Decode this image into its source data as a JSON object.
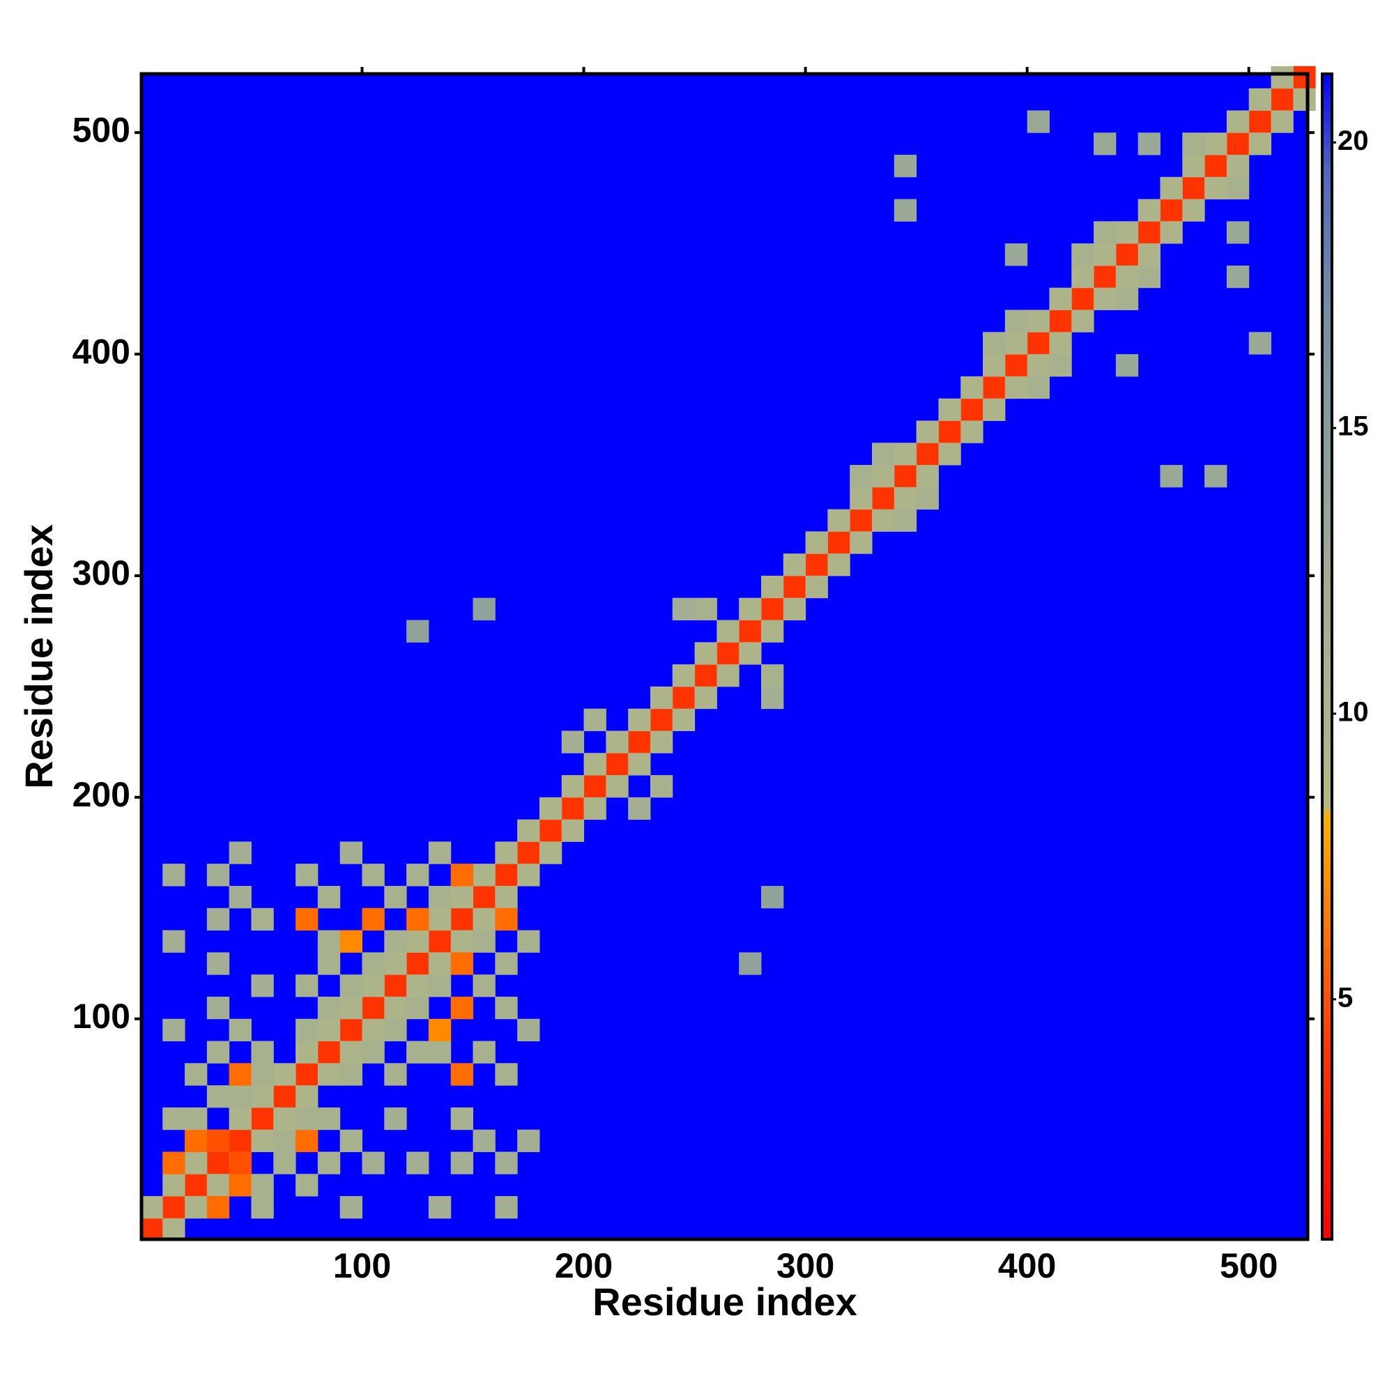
{
  "chart_data": {
    "type": "heatmap",
    "xlabel": "Residue index",
    "ylabel": "Residue index",
    "xlim": [
      0.5,
      526.5
    ],
    "ylim": [
      0.5,
      526.5
    ],
    "xticks": [
      100,
      200,
      300,
      400,
      500
    ],
    "yticks": [
      100,
      200,
      300,
      400,
      500
    ],
    "symmetric": true,
    "clim": [
      0.8,
      21.2
    ],
    "cticks": [
      5,
      10,
      15,
      20
    ],
    "colorscale": [
      {
        "value": 0.8,
        "color": "#ff0000"
      },
      {
        "value": 4,
        "color": "#ff3300"
      },
      {
        "value": 7.5,
        "color": "#ff9900"
      },
      {
        "value": 8.2,
        "color": "#ffb000"
      },
      {
        "value": 8.4,
        "color": "#b4b884"
      },
      {
        "value": 12,
        "color": "#a4ae92"
      },
      {
        "value": 17,
        "color": "#7490a6"
      },
      {
        "value": 19.5,
        "color": "#5068c0"
      },
      {
        "value": 21.2,
        "color": "#0000ff"
      }
    ],
    "x": [
      5,
      15,
      25,
      35,
      45,
      55,
      65,
      75,
      85,
      95,
      105,
      115,
      125,
      135,
      145,
      155,
      165,
      175,
      185,
      195,
      205,
      215,
      225,
      235,
      245,
      255,
      265,
      275,
      285,
      295,
      305,
      315,
      325,
      335,
      345,
      355,
      365,
      375,
      385,
      395,
      405,
      415,
      425,
      435,
      445,
      455,
      465,
      475,
      485,
      495,
      505,
      515,
      525,
      5,
      15,
      25,
      35,
      45,
      55,
      65,
      75,
      85,
      95,
      105,
      115,
      125,
      135,
      145,
      155,
      165,
      175,
      185,
      195,
      205,
      215,
      225,
      235,
      245,
      255,
      265,
      275,
      285,
      295,
      305,
      315,
      325,
      335,
      345,
      355,
      365,
      375,
      385,
      395,
      405,
      415,
      425,
      435,
      445,
      455,
      465,
      475,
      485,
      495,
      505,
      515,
      15,
      15,
      15,
      15,
      15,
      25,
      25,
      25,
      35,
      35,
      35,
      35,
      35,
      35,
      35,
      45,
      45,
      45,
      45,
      45,
      55,
      55,
      55,
      55,
      75,
      75,
      75,
      75,
      85,
      85,
      85,
      85,
      95,
      95,
      95,
      105,
      105,
      105,
      115,
      115,
      125,
      125,
      135,
      135,
      145,
      195,
      205,
      245,
      255,
      325,
      335,
      385,
      395,
      425,
      435,
      475,
      345,
      345,
      395,
      405,
      435,
      455,
      125,
      155
    ],
    "y": [
      5,
      15,
      25,
      35,
      45,
      55,
      65,
      75,
      85,
      95,
      105,
      115,
      125,
      135,
      145,
      155,
      165,
      175,
      185,
      195,
      205,
      215,
      225,
      235,
      245,
      255,
      265,
      275,
      285,
      295,
      305,
      315,
      325,
      335,
      345,
      355,
      365,
      375,
      385,
      395,
      405,
      415,
      425,
      435,
      445,
      455,
      465,
      475,
      485,
      495,
      505,
      515,
      525,
      15,
      25,
      35,
      45,
      55,
      65,
      75,
      85,
      95,
      105,
      115,
      125,
      135,
      145,
      155,
      165,
      175,
      185,
      195,
      205,
      215,
      225,
      235,
      245,
      255,
      265,
      275,
      285,
      295,
      305,
      315,
      325,
      335,
      345,
      355,
      365,
      375,
      385,
      395,
      405,
      415,
      425,
      435,
      445,
      455,
      465,
      475,
      485,
      495,
      505,
      515,
      525,
      35,
      55,
      95,
      135,
      165,
      45,
      55,
      75,
      45,
      65,
      85,
      105,
      125,
      145,
      165,
      65,
      75,
      95,
      155,
      175,
      75,
      85,
      115,
      145,
      95,
      115,
      145,
      165,
      105,
      125,
      135,
      155,
      115,
      135,
      175,
      125,
      145,
      165,
      135,
      155,
      145,
      165,
      155,
      175,
      165,
      225,
      235,
      285,
      285,
      345,
      355,
      405,
      415,
      445,
      455,
      495,
      465,
      485,
      445,
      505,
      495,
      495,
      275,
      285
    ],
    "values": [
      4,
      4,
      4,
      4,
      4,
      4,
      4,
      4,
      4,
      4,
      4,
      4,
      4,
      4,
      4,
      4,
      4,
      4,
      4,
      4,
      4,
      4,
      4,
      4,
      4,
      4,
      4,
      4,
      4,
      4,
      4,
      4,
      4,
      4,
      4,
      4,
      4,
      4,
      4,
      4,
      4,
      4,
      4,
      4,
      4,
      4,
      4,
      4,
      4,
      4,
      4,
      4,
      4,
      10,
      10,
      10,
      10,
      10,
      10,
      10,
      10,
      10,
      10,
      10,
      10,
      10,
      10,
      10,
      10,
      10,
      10,
      10,
      10,
      10,
      10,
      10,
      10,
      10,
      10,
      10,
      10,
      10,
      10,
      10,
      10,
      10,
      10,
      10,
      10,
      10,
      10,
      10,
      10,
      10,
      10,
      10,
      10,
      10,
      10,
      10,
      10,
      10,
      10,
      10,
      10,
      6,
      11,
      12,
      12,
      12,
      6,
      11,
      11,
      5,
      11,
      11,
      12,
      12,
      12,
      12,
      11,
      6,
      11,
      12,
      12,
      11,
      11,
      12,
      11,
      11,
      11,
      6,
      11,
      11,
      11,
      11,
      11,
      11,
      7,
      12,
      11,
      6,
      11,
      11,
      11,
      6,
      11,
      11,
      11,
      6,
      12,
      11,
      12,
      11,
      11,
      11,
      11,
      11,
      11,
      11,
      11,
      13,
      13,
      13,
      13,
      13,
      13,
      14,
      14
    ]
  }
}
